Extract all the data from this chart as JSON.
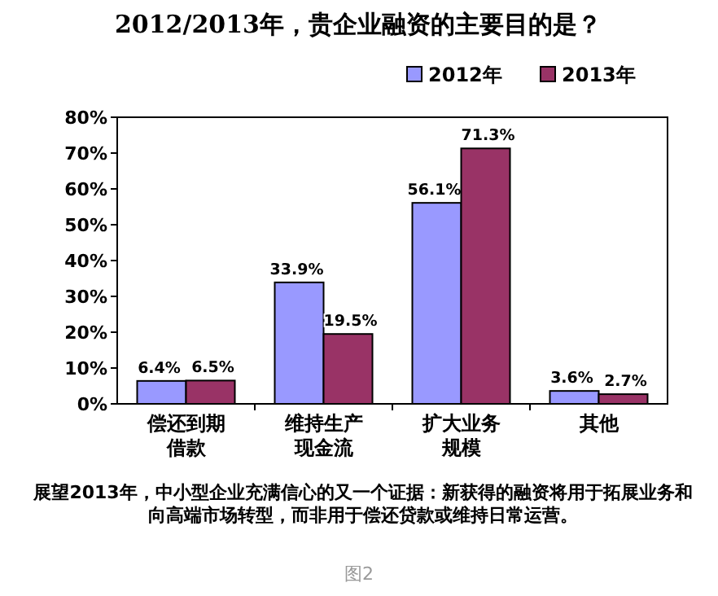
{
  "chart_data": {
    "type": "bar",
    "title": "2012/2013年，贵企业融资的主要目的是？",
    "categories": [
      "偿还到期借款",
      "维持生产现金流",
      "扩大业务规模",
      "其他"
    ],
    "series": [
      {
        "name": "2012年",
        "color": "#9999ff",
        "values": [
          6.4,
          33.9,
          56.1,
          3.6
        ],
        "value_labels": [
          "6.4%",
          "33.9%",
          "56.1%",
          "3.6%"
        ]
      },
      {
        "name": "2013年",
        "color": "#993366",
        "values": [
          6.5,
          19.5,
          71.3,
          2.7
        ],
        "value_labels": [
          "6.5%",
          "19.5%",
          "71.3%",
          "2.7%"
        ]
      }
    ],
    "ylim": [
      0,
      80
    ],
    "yticks": [
      {
        "value": 0,
        "label": "0%"
      },
      {
        "value": 10,
        "label": "10%"
      },
      {
        "value": 20,
        "label": "20%"
      },
      {
        "value": 30,
        "label": "30%"
      },
      {
        "value": 40,
        "label": "40%"
      },
      {
        "value": 50,
        "label": "50%"
      },
      {
        "value": 60,
        "label": "60%"
      },
      {
        "value": 70,
        "label": "70%"
      },
      {
        "value": 80,
        "label": "80%"
      }
    ],
    "legend": "top right",
    "annotations": [
      "展望2013年，中小型企业充满信心的又一个证据：新获得的融资将用于拓展业务和向高端市场转型，而非用于偿还贷款或维持日常运营。",
      "图2"
    ]
  }
}
